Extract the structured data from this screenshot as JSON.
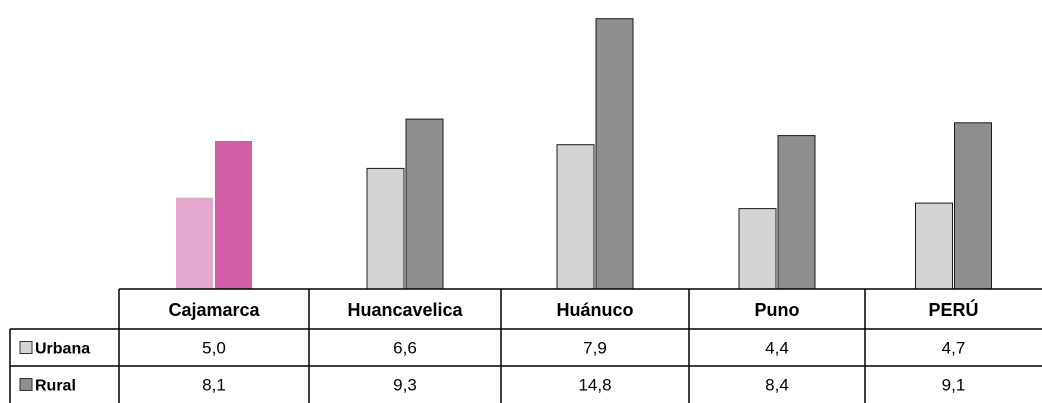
{
  "chart_data": {
    "type": "bar",
    "categories": [
      "Cajamarca",
      "Huancavelica",
      "Huánuco",
      "Puno",
      "PERÚ"
    ],
    "series": [
      {
        "name": "Urbana",
        "values": [
          5.0,
          6.6,
          7.9,
          4.4,
          4.7
        ],
        "display": [
          "5,0",
          "6,6",
          "7,9",
          "4,4",
          "4,7"
        ]
      },
      {
        "name": "Rural",
        "values": [
          8.1,
          9.3,
          14.8,
          8.4,
          9.1
        ],
        "display": [
          "8,1",
          "9,3",
          "14,8",
          "8,4",
          "9,1"
        ]
      }
    ],
    "ylim": [
      0,
      15
    ],
    "grid": false,
    "legend": "table-left",
    "colors": {
      "urbana": "#d4d4d6",
      "rural": "#8e8e91",
      "urbana_highlight": "#e5a9cf",
      "rural_highlight": "#d15ea6"
    },
    "highlight_category": "Cajamarca"
  }
}
